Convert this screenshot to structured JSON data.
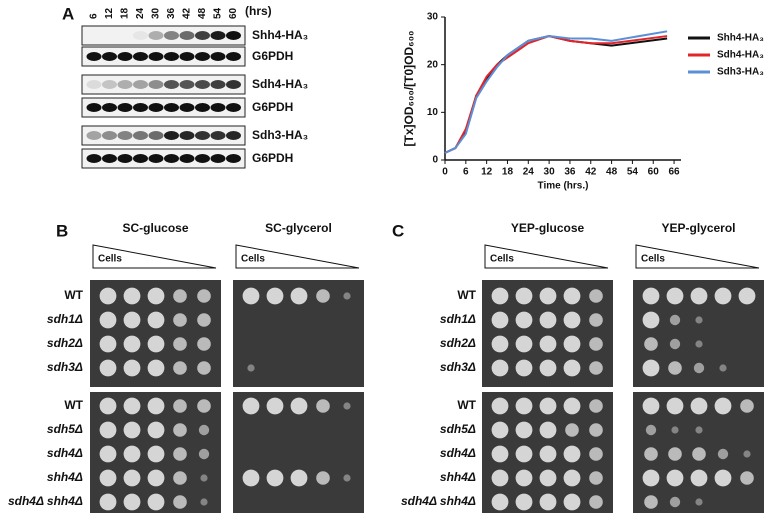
{
  "panel_a": {
    "label": "A",
    "lanes": [
      "6",
      "12",
      "18",
      "24",
      "30",
      "36",
      "42",
      "48",
      "54",
      "60"
    ],
    "lanes_unit": "(hrs)",
    "blots": [
      "Shh4-HA₃",
      "G6PDH",
      "Sdh4-HA₃",
      "G6PDH",
      "Sdh3-HA₃",
      "G6PDH"
    ]
  },
  "chart_data": {
    "type": "line",
    "x_label": "Time (hrs.)",
    "y_label": "[Tx]OD₆₀₀/[T0]OD₆₀₀",
    "x": [
      0,
      3,
      6,
      9,
      12,
      15,
      18,
      21,
      24,
      30,
      36,
      42,
      48,
      64
    ],
    "series": [
      {
        "name": "Shh4-HA₃",
        "color": "#111111",
        "values": [
          1.5,
          2.5,
          6,
          13.5,
          17,
          20,
          22,
          23.5,
          25,
          26,
          25,
          24.5,
          24,
          25.5
        ]
      },
      {
        "name": "Sdh4-HA₃",
        "color": "#e3242b",
        "values": [
          1.5,
          2.5,
          6.5,
          13.5,
          17.5,
          20,
          21.5,
          23,
          24.5,
          26,
          25,
          24.5,
          24.5,
          26
        ]
      },
      {
        "name": "Sdh3-HA₃",
        "color": "#5b8fd6",
        "values": [
          1.5,
          2.5,
          5.5,
          13,
          16.5,
          19.5,
          22,
          23.5,
          25,
          26,
          25.5,
          25.5,
          25,
          27
        ]
      }
    ],
    "xlim": [
      0,
      68
    ],
    "xticks": [
      0,
      6,
      12,
      18,
      24,
      30,
      36,
      42,
      48,
      54,
      60,
      66
    ],
    "ylim": [
      0,
      30
    ],
    "yticks": [
      0,
      10,
      20,
      30
    ]
  },
  "panel_b": {
    "label": "B",
    "media": [
      "SC-glucose",
      "SC-glycerol"
    ],
    "cells": [
      "Cells",
      "Cells"
    ],
    "strains_top": [
      "WT",
      "sdh1Δ",
      "sdh2Δ",
      "sdh3Δ"
    ],
    "strains_bottom": [
      "WT",
      "sdh5Δ",
      "sdh4Δ",
      "shh4Δ",
      "sdh4Δ shh4Δ"
    ]
  },
  "panel_c": {
    "label": "C",
    "media": [
      "YEP-glucose",
      "YEP-glycerol"
    ],
    "cells": [
      "Cells",
      "Cells"
    ],
    "strains_top": [
      "WT",
      "sdh1Δ",
      "sdh2Δ",
      "sdh3Δ"
    ],
    "strains_bottom": [
      "WT",
      "sdh5Δ",
      "sdh4Δ",
      "shh4Δ",
      "sdh4Δ shh4Δ"
    ]
  }
}
